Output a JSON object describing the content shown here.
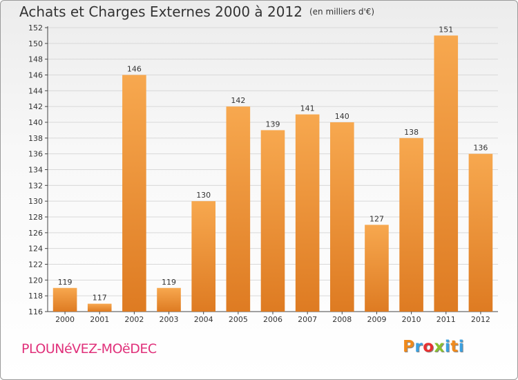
{
  "header": {
    "title": "Achats et Charges Externes 2000 à 2012",
    "unit": "(en milliers d'€)"
  },
  "footer": {
    "commune": "PLOUNéVEZ-MOëDEC",
    "logo_text": "Proxiti",
    "logo_colors": [
      "#f08a1c",
      "#3aa0e0",
      "#e83030",
      "#8ac030",
      "#3aa0e0",
      "#f08a1c",
      "#3aa0e0"
    ]
  },
  "colors": {
    "bar_light": "#f7a84f",
    "bar_dark": "#de7b22",
    "grid": "#d8d8d8",
    "axis": "#444444"
  },
  "chart_data": {
    "type": "bar",
    "title": "Achats et Charges Externes 2000 à 2012",
    "subtitle": "(en milliers d'€)",
    "categories": [
      "2000",
      "2001",
      "2002",
      "2003",
      "2004",
      "2005",
      "2006",
      "2007",
      "2008",
      "2009",
      "2010",
      "2011",
      "2012"
    ],
    "values": [
      119,
      117,
      146,
      119,
      130,
      142,
      139,
      141,
      140,
      127,
      138,
      151,
      136
    ],
    "ylim": [
      116,
      152
    ],
    "ytick_step": 2,
    "grid": true,
    "data_labels": true
  }
}
